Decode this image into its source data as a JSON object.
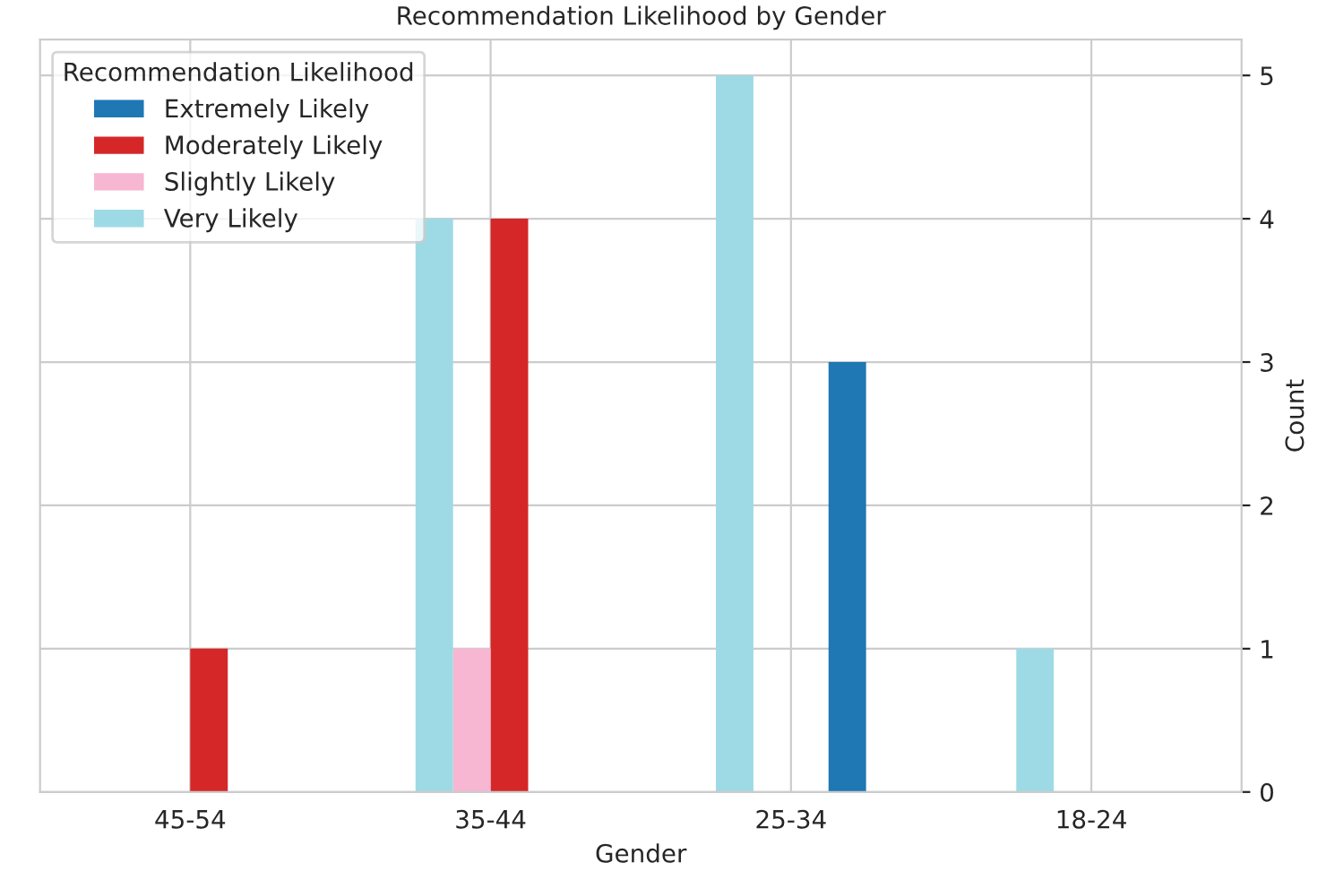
{
  "chart_data": {
    "type": "bar",
    "title": "Recommendation Likelihood by Gender",
    "xlabel": "Gender",
    "ylabel": "Count",
    "legend_title": "Recommendation Likelihood",
    "categories": [
      "45-54",
      "35-44",
      "25-34",
      "18-24"
    ],
    "series": [
      {
        "name": "Extremely Likely",
        "color": "#1f77b4",
        "values": [
          null,
          null,
          3,
          null
        ]
      },
      {
        "name": "Moderately Likely",
        "color": "#d62728",
        "values": [
          1,
          4,
          null,
          null
        ]
      },
      {
        "name": "Slightly Likely",
        "color": "#f7b6d2",
        "values": [
          null,
          1,
          null,
          null
        ]
      },
      {
        "name": "Very Likely",
        "color": "#9edae5",
        "values": [
          null,
          4,
          5,
          1
        ]
      }
    ],
    "ylim": [
      0,
      5.25
    ],
    "yticks": [
      0,
      1,
      2,
      3,
      4,
      5
    ],
    "grid": true,
    "legend": "top left"
  }
}
